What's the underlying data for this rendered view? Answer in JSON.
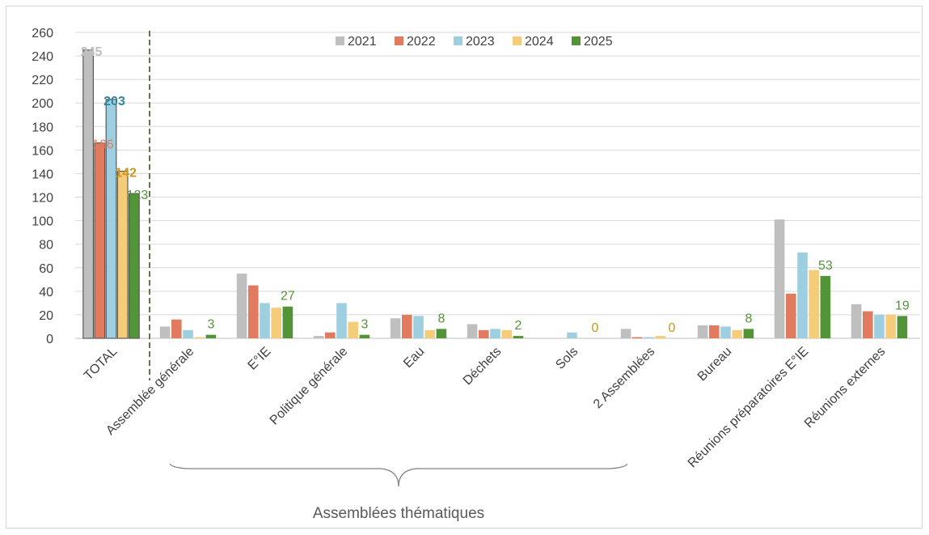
{
  "chart_data": {
    "type": "bar",
    "title": "",
    "xlabel": "",
    "ylabel": "",
    "ylim": [
      0,
      260
    ],
    "yticks": [
      0,
      20,
      40,
      60,
      80,
      100,
      120,
      140,
      160,
      180,
      200,
      220,
      240,
      260
    ],
    "grid": true,
    "legend_position": "top",
    "categories": [
      "TOTAL",
      "Assemblée générale",
      "E°IE",
      "Politique générale",
      "Eau",
      "Déchets",
      "Sols",
      "2 Assemblées",
      "Bureau",
      "Réunions préparatoires E°IE",
      "Réunions externes"
    ],
    "series": [
      {
        "name": "2021",
        "color": "#bfbfbf",
        "values": [
          245,
          10,
          55,
          2,
          17,
          12,
          0,
          8,
          11,
          101,
          29
        ]
      },
      {
        "name": "2022",
        "color": "#e07b5f",
        "values": [
          166,
          16,
          45,
          5,
          20,
          7,
          0,
          1,
          11,
          38,
          23
        ]
      },
      {
        "name": "2023",
        "color": "#9ecfe0",
        "values": [
          203,
          7,
          30,
          30,
          19,
          8,
          5,
          1,
          10,
          73,
          20
        ]
      },
      {
        "name": "2024",
        "color": "#f5cd7a",
        "values": [
          142,
          1,
          26,
          14,
          7,
          7,
          0,
          2,
          7,
          58,
          20
        ]
      },
      {
        "name": "2025",
        "color": "#529437",
        "values": [
          123,
          3,
          27,
          3,
          8,
          2,
          0,
          0,
          8,
          53,
          19
        ]
      }
    ],
    "data_labels": [
      {
        "category": "TOTAL",
        "series": "2021",
        "text": "245",
        "color": "#bfbfbf",
        "bold": true
      },
      {
        "category": "TOTAL",
        "series": "2022",
        "text": "166",
        "color": "#e07b5f",
        "bold": false
      },
      {
        "category": "TOTAL",
        "series": "2023",
        "text": "203",
        "color": "#31849b",
        "bold": true
      },
      {
        "category": "TOTAL",
        "series": "2024",
        "text": "142",
        "color": "#c9951e",
        "bold": true
      },
      {
        "category": "TOTAL",
        "series": "2025",
        "text": "123",
        "color": "#529437",
        "bold": false
      },
      {
        "category": "Assemblée générale",
        "series": "2025",
        "text": "3",
        "color": "#529437",
        "bold": false
      },
      {
        "category": "E°IE",
        "series": "2025",
        "text": "27",
        "color": "#529437",
        "bold": false
      },
      {
        "category": "Politique générale",
        "series": "2025",
        "text": "3",
        "color": "#529437",
        "bold": false
      },
      {
        "category": "Eau",
        "series": "2025",
        "text": "8",
        "color": "#529437",
        "bold": false
      },
      {
        "category": "Déchets",
        "series": "2025",
        "text": "2",
        "color": "#529437",
        "bold": false
      },
      {
        "category": "Sols",
        "series": "2025",
        "text": "0",
        "color": "#c9951e",
        "bold": false
      },
      {
        "category": "2 Assemblées",
        "series": "2025",
        "text": "0",
        "color": "#c9951e",
        "bold": false
      },
      {
        "category": "Bureau",
        "series": "2025",
        "text": "8",
        "color": "#529437",
        "bold": false
      },
      {
        "category": "Réunions préparatoires E°IE",
        "series": "2025",
        "text": "53",
        "color": "#529437",
        "bold": false
      },
      {
        "category": "Réunions externes",
        "series": "2025",
        "text": "19",
        "color": "#529437",
        "bold": false
      }
    ],
    "group_annotation": {
      "text": "Assemblées thématiques",
      "from_category": "Assemblée générale",
      "to_category": "Sols"
    },
    "separator_after_category": "TOTAL",
    "separator_color": "#385723",
    "total_bar_outline": "#595959"
  }
}
